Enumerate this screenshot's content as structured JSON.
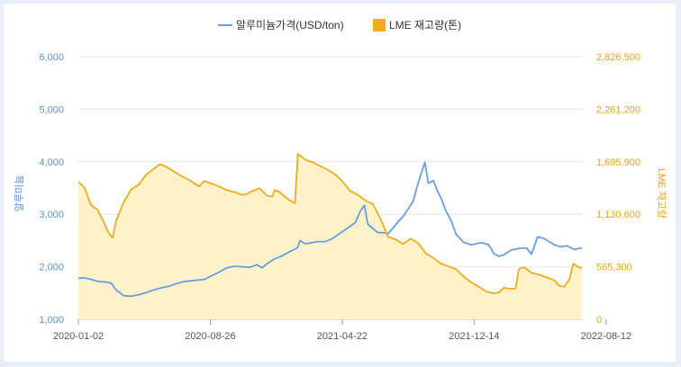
{
  "chart_data": {
    "type": "line",
    "legend": {
      "placement": "top-center",
      "items": [
        {
          "label": "알루미늄가격(USD/ton)",
          "color": "#6a9ee0",
          "marker": "line"
        },
        {
          "label": "LME 재고량(톤)",
          "color": "#f0ac1c",
          "marker": "box"
        }
      ]
    },
    "y_left": {
      "label": "알루미늄",
      "ticks": [
        "6,000",
        "5,000",
        "4,000",
        "3,000",
        "2,000",
        "1,000"
      ],
      "ylim": [
        1000,
        6000
      ]
    },
    "y_right": {
      "label": "LME 재고량",
      "ticks": [
        "2,826,500",
        "2,261,200",
        "1,695,900",
        "1,130,600",
        "565,300",
        "0"
      ],
      "ylim": [
        0,
        2826500
      ]
    },
    "x_ticks": [
      "2020-01-02",
      "2020-08-26",
      "2021-04-22",
      "2021-12-14",
      "2022-08-12"
    ],
    "series": [
      {
        "name": "알루미늄가격(USD/ton)",
        "axis": "left",
        "color": "#6a9ee0",
        "points": [
          [
            0.0,
            1780
          ],
          [
            0.012,
            1790
          ],
          [
            0.025,
            1760
          ],
          [
            0.04,
            1720
          ],
          [
            0.055,
            1710
          ],
          [
            0.065,
            1690
          ],
          [
            0.075,
            1560
          ],
          [
            0.09,
            1450
          ],
          [
            0.105,
            1440
          ],
          [
            0.12,
            1470
          ],
          [
            0.135,
            1510
          ],
          [
            0.15,
            1560
          ],
          [
            0.165,
            1600
          ],
          [
            0.18,
            1630
          ],
          [
            0.195,
            1680
          ],
          [
            0.21,
            1720
          ],
          [
            0.23,
            1740
          ],
          [
            0.25,
            1760
          ],
          [
            0.265,
            1830
          ],
          [
            0.28,
            1900
          ],
          [
            0.295,
            1980
          ],
          [
            0.31,
            2010
          ],
          [
            0.325,
            2000
          ],
          [
            0.34,
            1990
          ],
          [
            0.355,
            2040
          ],
          [
            0.365,
            1980
          ],
          [
            0.375,
            2060
          ],
          [
            0.39,
            2150
          ],
          [
            0.405,
            2210
          ],
          [
            0.42,
            2290
          ],
          [
            0.435,
            2360
          ],
          [
            0.44,
            2500
          ],
          [
            0.45,
            2440
          ],
          [
            0.46,
            2450
          ],
          [
            0.475,
            2480
          ],
          [
            0.49,
            2480
          ],
          [
            0.505,
            2540
          ],
          [
            0.52,
            2640
          ],
          [
            0.535,
            2740
          ],
          [
            0.55,
            2840
          ],
          [
            0.56,
            3060
          ],
          [
            0.568,
            3170
          ],
          [
            0.575,
            2810
          ],
          [
            0.585,
            2730
          ],
          [
            0.595,
            2650
          ],
          [
            0.605,
            2650
          ],
          [
            0.615,
            2630
          ],
          [
            0.625,
            2740
          ],
          [
            0.635,
            2860
          ],
          [
            0.645,
            2960
          ],
          [
            0.655,
            3100
          ],
          [
            0.665,
            3250
          ],
          [
            0.672,
            3500
          ],
          [
            0.68,
            3750
          ],
          [
            0.688,
            3990
          ],
          [
            0.695,
            3590
          ],
          [
            0.705,
            3640
          ],
          [
            0.712,
            3470
          ],
          [
            0.72,
            3310
          ],
          [
            0.73,
            3060
          ],
          [
            0.74,
            2880
          ],
          [
            0.75,
            2620
          ],
          [
            0.765,
            2470
          ],
          [
            0.78,
            2420
          ],
          [
            0.8,
            2460
          ],
          [
            0.815,
            2420
          ],
          [
            0.825,
            2250
          ],
          [
            0.835,
            2200
          ],
          [
            0.845,
            2230
          ],
          [
            0.86,
            2320
          ],
          [
            0.875,
            2350
          ],
          [
            0.89,
            2360
          ],
          [
            0.9,
            2240
          ],
          [
            0.912,
            2570
          ],
          [
            0.925,
            2540
          ],
          [
            0.935,
            2480
          ],
          [
            0.945,
            2420
          ],
          [
            0.958,
            2380
          ],
          [
            0.97,
            2400
          ],
          [
            0.985,
            2330
          ],
          [
            1.0,
            2360
          ]
        ]
      },
      {
        "name": "LME 재고량(톤)",
        "axis": "right",
        "color": "#f0ac1c",
        "fill": "#fdf2c9",
        "points": [
          [
            0.0,
            1480000
          ],
          [
            0.012,
            1420000
          ],
          [
            0.025,
            1230000
          ],
          [
            0.038,
            1180000
          ],
          [
            0.05,
            1050000
          ],
          [
            0.06,
            930000
          ],
          [
            0.068,
            880000
          ],
          [
            0.075,
            1060000
          ],
          [
            0.09,
            1260000
          ],
          [
            0.105,
            1400000
          ],
          [
            0.12,
            1450000
          ],
          [
            0.135,
            1560000
          ],
          [
            0.15,
            1620000
          ],
          [
            0.162,
            1670000
          ],
          [
            0.175,
            1640000
          ],
          [
            0.19,
            1590000
          ],
          [
            0.205,
            1540000
          ],
          [
            0.22,
            1500000
          ],
          [
            0.24,
            1430000
          ],
          [
            0.25,
            1490000
          ],
          [
            0.265,
            1460000
          ],
          [
            0.28,
            1430000
          ],
          [
            0.295,
            1390000
          ],
          [
            0.31,
            1370000
          ],
          [
            0.325,
            1340000
          ],
          [
            0.335,
            1350000
          ],
          [
            0.345,
            1380000
          ],
          [
            0.36,
            1410000
          ],
          [
            0.375,
            1330000
          ],
          [
            0.385,
            1320000
          ],
          [
            0.39,
            1390000
          ],
          [
            0.4,
            1370000
          ],
          [
            0.41,
            1320000
          ],
          [
            0.42,
            1280000
          ],
          [
            0.43,
            1250000
          ],
          [
            0.436,
            1780000
          ],
          [
            0.45,
            1720000
          ],
          [
            0.465,
            1690000
          ],
          [
            0.48,
            1650000
          ],
          [
            0.495,
            1610000
          ],
          [
            0.51,
            1560000
          ],
          [
            0.525,
            1480000
          ],
          [
            0.54,
            1380000
          ],
          [
            0.555,
            1340000
          ],
          [
            0.57,
            1280000
          ],
          [
            0.585,
            1240000
          ],
          [
            0.6,
            1080000
          ],
          [
            0.615,
            890000
          ],
          [
            0.63,
            860000
          ],
          [
            0.645,
            810000
          ],
          [
            0.66,
            870000
          ],
          [
            0.675,
            820000
          ],
          [
            0.69,
            710000
          ],
          [
            0.705,
            660000
          ],
          [
            0.72,
            600000
          ],
          [
            0.735,
            570000
          ],
          [
            0.75,
            540000
          ],
          [
            0.765,
            460000
          ],
          [
            0.78,
            400000
          ],
          [
            0.795,
            350000
          ],
          [
            0.81,
            300000
          ],
          [
            0.825,
            280000
          ],
          [
            0.835,
            290000
          ],
          [
            0.845,
            340000
          ],
          [
            0.855,
            330000
          ],
          [
            0.868,
            330000
          ],
          [
            0.875,
            540000
          ],
          [
            0.885,
            560000
          ],
          [
            0.9,
            500000
          ],
          [
            0.915,
            480000
          ],
          [
            0.93,
            450000
          ],
          [
            0.945,
            420000
          ],
          [
            0.955,
            360000
          ],
          [
            0.965,
            350000
          ],
          [
            0.975,
            430000
          ],
          [
            0.983,
            600000
          ],
          [
            0.99,
            570000
          ],
          [
            1.0,
            550000
          ]
        ]
      }
    ]
  }
}
